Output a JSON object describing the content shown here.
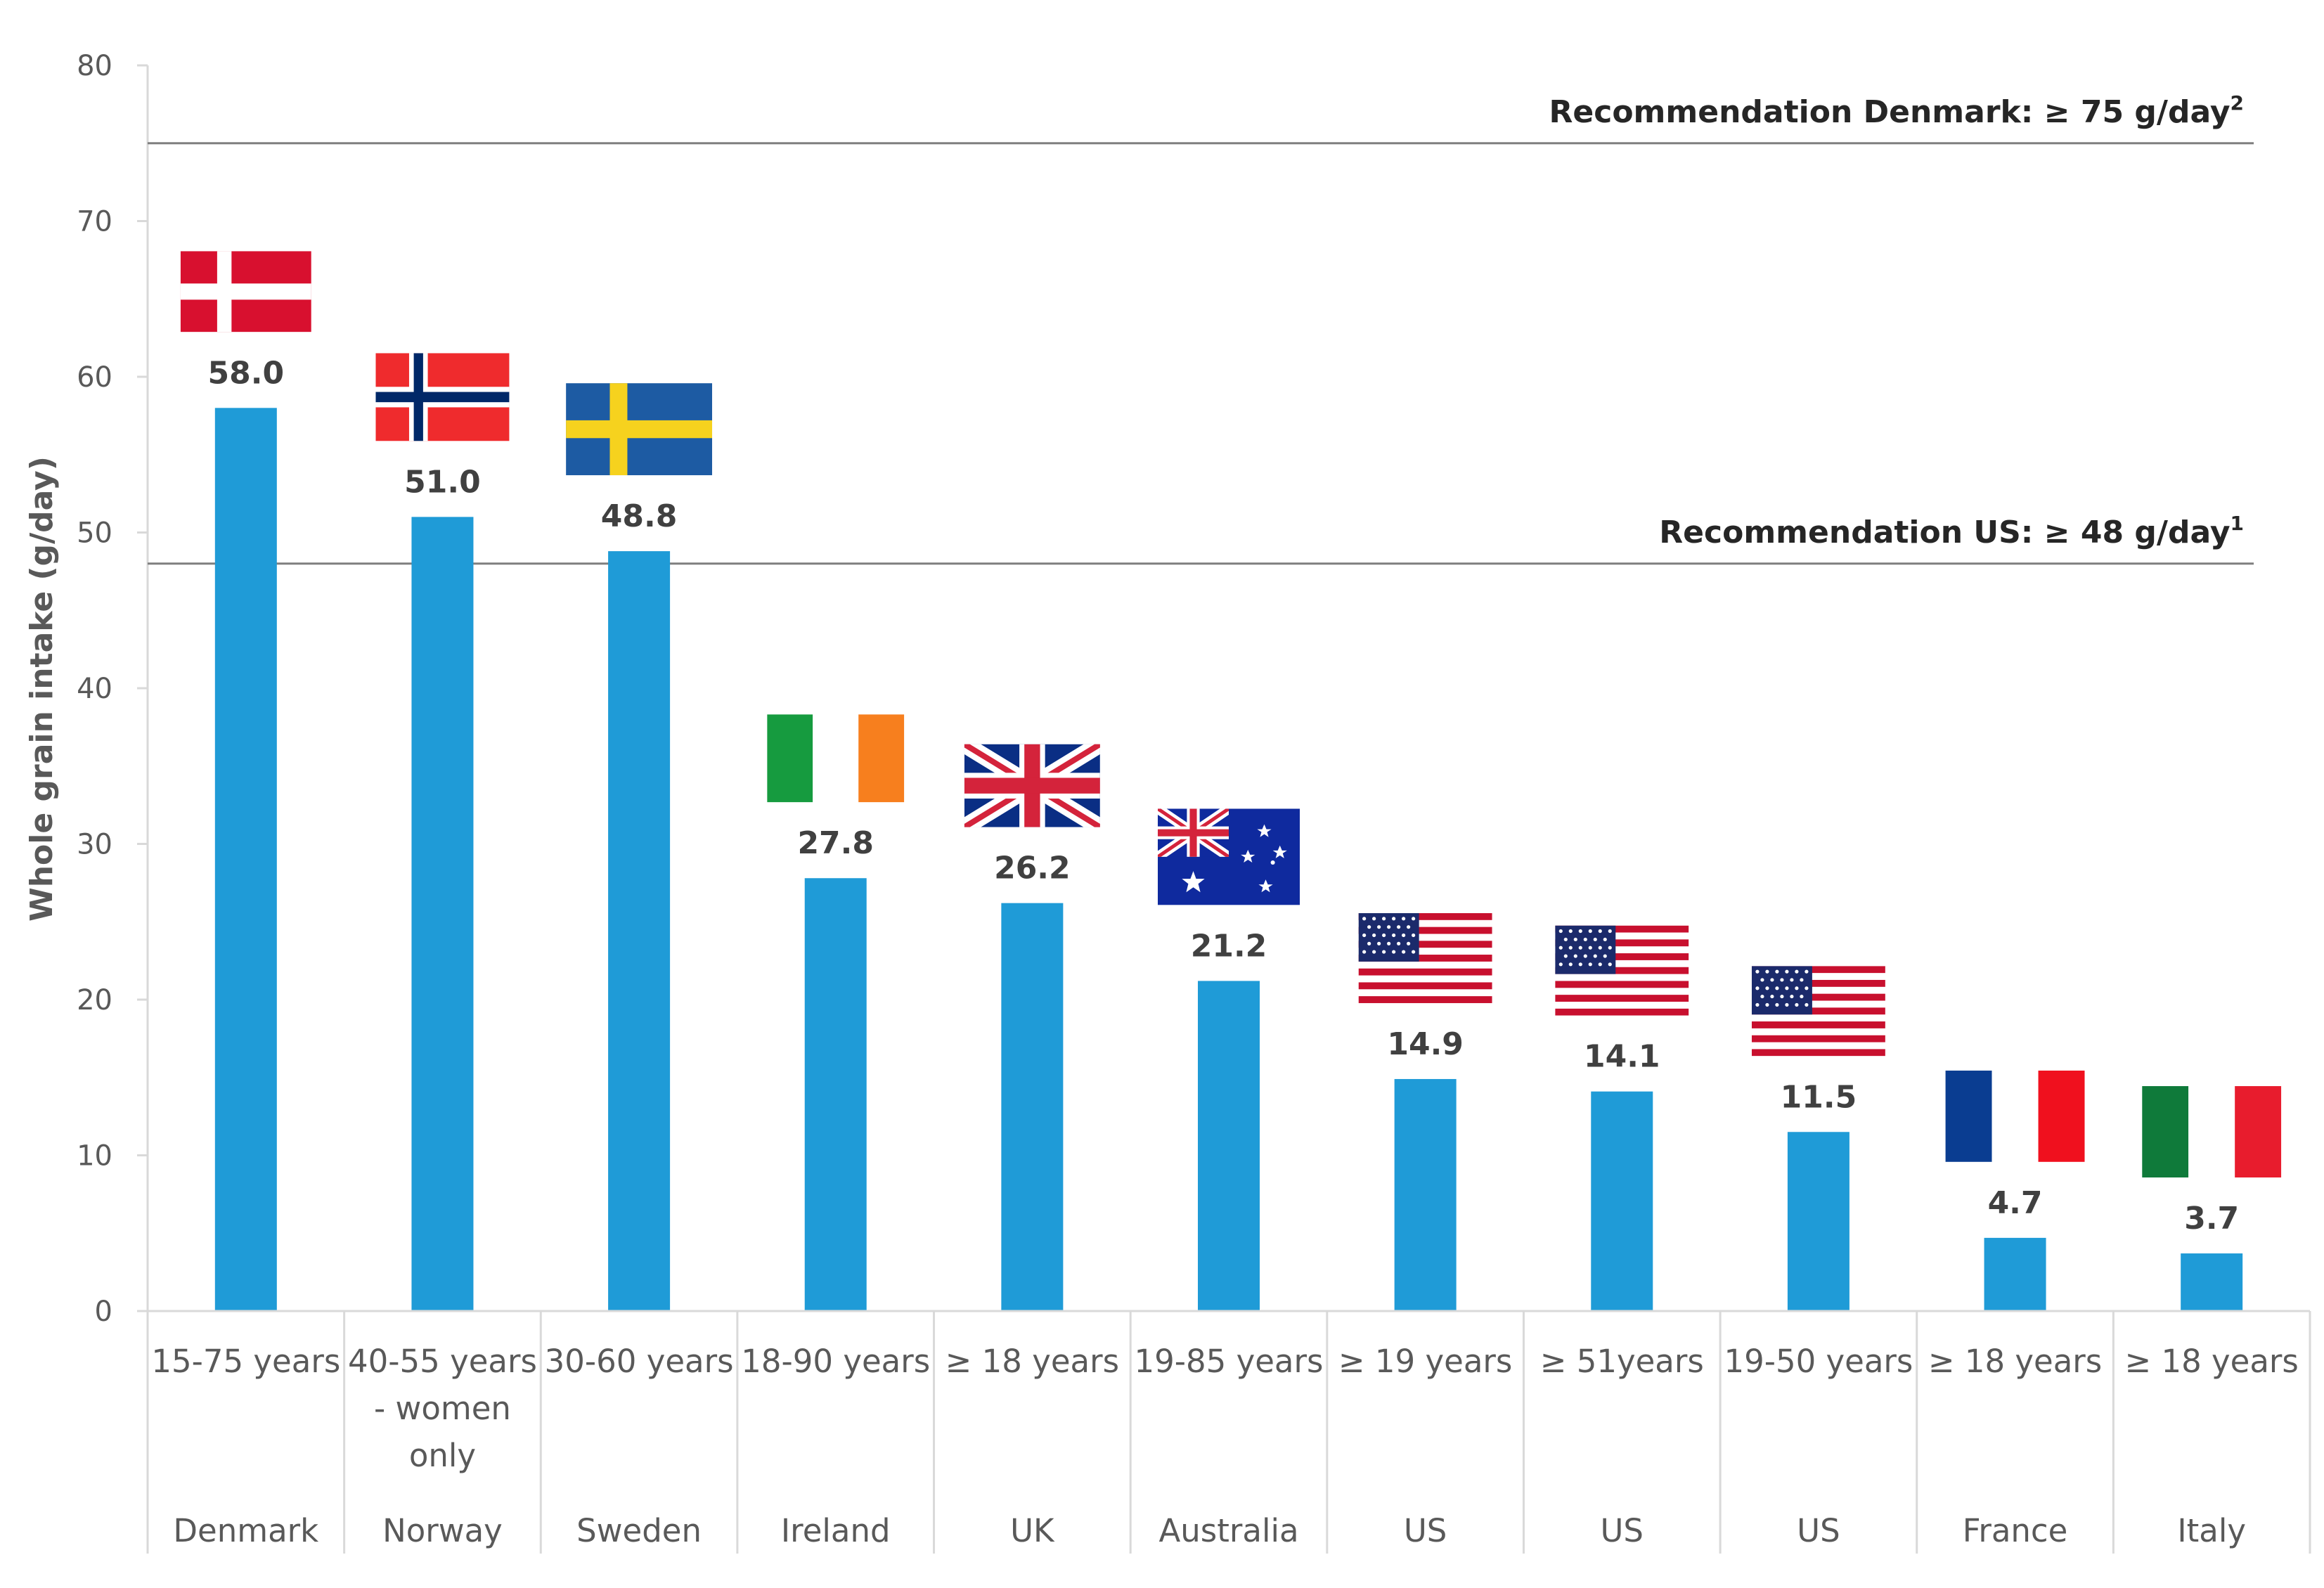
{
  "chart_data": {
    "type": "bar",
    "title": "",
    "xlabel": "",
    "ylabel": "Whole grain intake (g/day)",
    "ylim": [
      0,
      80
    ],
    "yticks": [
      0,
      10,
      20,
      30,
      40,
      50,
      60,
      70,
      80
    ],
    "grid": false,
    "bar_color": "#1f9bd7",
    "categories": [
      {
        "age": [
          "15-75 years"
        ],
        "country": "Denmark",
        "flag": "denmark-flag"
      },
      {
        "age": [
          "40-55 years",
          "- women",
          "only"
        ],
        "country": "Norway",
        "flag": "norway-flag"
      },
      {
        "age": [
          "30-60 years"
        ],
        "country": "Sweden",
        "flag": "sweden-flag"
      },
      {
        "age": [
          "18-90 years"
        ],
        "country": "Ireland",
        "flag": "ireland-flag"
      },
      {
        "age": [
          "≥ 18 years"
        ],
        "country": "UK",
        "flag": "uk-flag"
      },
      {
        "age": [
          "19-85 years"
        ],
        "country": "Australia",
        "flag": "australia-flag"
      },
      {
        "age": [
          "≥ 19 years"
        ],
        "country": "US",
        "flag": "us-flag"
      },
      {
        "age": [
          "≥ 51years"
        ],
        "country": "US",
        "flag": "us-flag"
      },
      {
        "age": [
          "19-50 years"
        ],
        "country": "US",
        "flag": "us-flag"
      },
      {
        "age": [
          "≥ 18 years"
        ],
        "country": "France",
        "flag": "france-flag"
      },
      {
        "age": [
          "≥ 18 years"
        ],
        "country": "Italy",
        "flag": "italy-flag"
      }
    ],
    "values": [
      58.0,
      51.0,
      48.8,
      27.8,
      26.2,
      21.2,
      14.9,
      14.1,
      11.5,
      4.7,
      3.7
    ],
    "value_labels": [
      "58.0",
      "51.0",
      "48.8",
      "27.8",
      "26.2",
      "21.2",
      "14.9",
      "14.1",
      "11.5",
      "4.7",
      "3.7"
    ],
    "reference_lines": [
      {
        "value": 75,
        "label": "Recommendation Denmark: ≥ 75 g/day",
        "sup": "2"
      },
      {
        "value": 48,
        "label": "Recommendation US: ≥ 48 g/day",
        "sup": "1"
      }
    ]
  }
}
